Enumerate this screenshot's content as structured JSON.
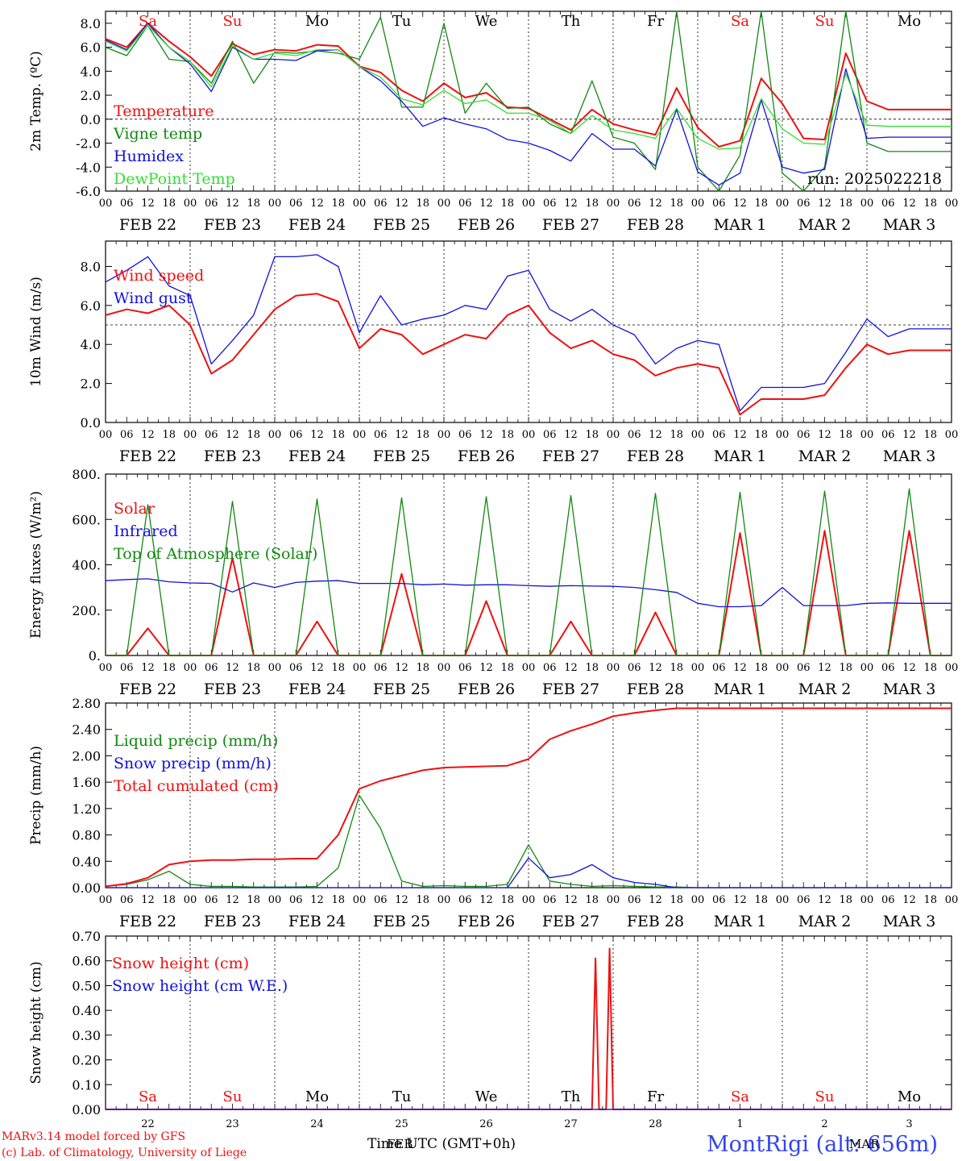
{
  "meta": {
    "run_label": "run: 2025022218",
    "station": "MontRigi (alt: 656m)",
    "credit_line1": "MARv3.14 model forced by GFS",
    "credit_line2": "(c) Lab. of Climatology, University of Liege",
    "xlabel": "Time UTC (GMT+0h)",
    "bottom_month_overlay": "FEB",
    "bottom_month_overlay2": "MAR"
  },
  "colors": {
    "red": "#ee1111",
    "green": "#118811",
    "blue": "#1111dd",
    "lightgreen": "#33dd33",
    "weekend": "#ee1111",
    "weekday": "#000000"
  },
  "days": [
    {
      "weekday": "Sa",
      "date": "FEB 22",
      "num": "22",
      "weekend": true
    },
    {
      "weekday": "Su",
      "date": "FEB 23",
      "num": "23",
      "weekend": true
    },
    {
      "weekday": "Mo",
      "date": "FEB 24",
      "num": "24",
      "weekend": false
    },
    {
      "weekday": "Tu",
      "date": "FEB 25",
      "num": "25",
      "weekend": false
    },
    {
      "weekday": "We",
      "date": "FEB 26",
      "num": "26",
      "weekend": false
    },
    {
      "weekday": "Th",
      "date": "FEB 27",
      "num": "27",
      "weekend": false
    },
    {
      "weekday": "Fr",
      "date": "FEB 28",
      "num": "28",
      "weekend": false
    },
    {
      "weekday": "Sa",
      "date": "MAR  1",
      "num": "1",
      "weekend": true
    },
    {
      "weekday": "Su",
      "date": "MAR  2",
      "num": "2",
      "weekend": true
    },
    {
      "weekday": "Mo",
      "date": "MAR  3",
      "num": "3",
      "weekend": false
    }
  ],
  "hour_ticks": [
    "00",
    "06",
    "12",
    "18"
  ],
  "chart_data": [
    {
      "type": "line",
      "ylabel": "2m Temp. (ºC)",
      "ylim": [
        -6,
        9
      ],
      "yticks": [
        "-6.0",
        "-4.0",
        "-2.0",
        "0.0",
        "2.0",
        "4.0",
        "6.0",
        "8.0"
      ],
      "ytick_values": [
        -6,
        -4,
        -2,
        0,
        2,
        4,
        6,
        8
      ],
      "ref_line": 0,
      "x_hours": [
        0,
        6,
        12,
        18,
        24,
        30,
        36,
        42,
        48,
        54,
        60,
        66,
        72,
        78,
        84,
        90,
        96,
        102,
        108,
        114,
        120,
        126,
        132,
        138,
        144,
        150,
        156,
        162,
        168,
        174,
        180,
        186,
        192,
        198,
        204,
        210,
        216,
        222,
        228,
        234,
        240
      ],
      "series": [
        {
          "name": "Temperature",
          "color": "red",
          "values": [
            6.7,
            6.0,
            8.0,
            6.5,
            5.2,
            3.6,
            6.3,
            5.4,
            5.8,
            5.7,
            6.2,
            6.1,
            4.4,
            3.9,
            2.4,
            1.5,
            3.0,
            1.8,
            2.2,
            1.0,
            0.9,
            0.0,
            -0.9,
            0.8,
            -0.4,
            -0.9,
            -1.3,
            2.6,
            -0.7,
            -2.3,
            -1.8,
            3.4,
            1.3,
            -1.6,
            -1.7,
            5.5,
            1.5,
            0.8,
            0.8,
            0.8,
            0.8
          ]
        },
        {
          "name": "Vigne temp",
          "color": "green",
          "values": [
            6.0,
            5.3,
            7.8,
            5.0,
            4.8,
            3.0,
            6.5,
            3.0,
            5.6,
            5.5,
            5.7,
            5.5,
            5.0,
            8.5,
            1.0,
            1.0,
            8.0,
            0.5,
            3.0,
            0.9,
            1.0,
            -0.4,
            -1.2,
            3.2,
            -1.5,
            -2.0,
            -4.2,
            9.0,
            -4.0,
            -6.5,
            -3.0,
            9.0,
            -4.5,
            -6.5,
            -4.0,
            9.0,
            -2.0,
            -2.7,
            -2.7,
            -2.7,
            -2.7
          ]
        },
        {
          "name": "Humidex",
          "color": "blue",
          "values": [
            6.6,
            5.8,
            8.0,
            6.0,
            4.6,
            2.3,
            6.0,
            5.0,
            5.0,
            4.9,
            5.7,
            5.8,
            4.4,
            3.2,
            1.5,
            -0.6,
            0.1,
            -0.4,
            -0.8,
            -1.7,
            -2.0,
            -2.6,
            -3.5,
            -1.2,
            -2.5,
            -2.5,
            -3.9,
            0.8,
            -4.4,
            -5.5,
            -4.5,
            1.6,
            -4.0,
            -4.5,
            -4.2,
            4.2,
            -1.6,
            -1.5,
            -1.5,
            -1.5,
            -1.5
          ]
        },
        {
          "name": "DewPoint Temp",
          "color": "lightgreen",
          "values": [
            6.5,
            5.7,
            7.8,
            6.0,
            4.8,
            2.7,
            6.1,
            5.0,
            5.5,
            5.3,
            5.8,
            5.8,
            4.4,
            3.5,
            1.7,
            1.2,
            2.4,
            1.3,
            1.6,
            0.5,
            0.5,
            -0.1,
            -1.2,
            0.3,
            -0.9,
            -1.2,
            -1.6,
            0.9,
            -1.6,
            -2.5,
            -2.4,
            1.7,
            -0.8,
            -2.0,
            -2.1,
            3.8,
            -0.5,
            -0.6,
            -0.6,
            -0.6,
            -0.6
          ]
        }
      ]
    },
    {
      "type": "line",
      "ylabel": "10m Wind (m/s)",
      "ylim": [
        0,
        9.3
      ],
      "yticks": [
        "0.0",
        "2.0",
        "4.0",
        "6.0",
        "8.0"
      ],
      "ytick_values": [
        0,
        2,
        4,
        6,
        8
      ],
      "ref_line": 5,
      "x_hours": [
        0,
        6,
        12,
        18,
        24,
        30,
        36,
        42,
        48,
        54,
        60,
        66,
        72,
        78,
        84,
        90,
        96,
        102,
        108,
        114,
        120,
        126,
        132,
        138,
        144,
        150,
        156,
        162,
        168,
        174,
        180,
        186,
        192,
        198,
        204,
        210,
        216,
        222,
        228,
        234,
        240
      ],
      "series": [
        {
          "name": "Wind speed",
          "color": "red",
          "values": [
            5.5,
            5.8,
            5.6,
            6.0,
            5.0,
            2.5,
            3.2,
            4.5,
            5.8,
            6.5,
            6.6,
            6.2,
            3.8,
            4.8,
            4.5,
            3.5,
            4.0,
            4.5,
            4.3,
            5.5,
            6.0,
            4.6,
            3.8,
            4.2,
            3.5,
            3.2,
            2.4,
            2.8,
            3.0,
            2.8,
            0.4,
            1.2,
            1.2,
            1.2,
            1.4,
            2.8,
            4.0,
            3.5,
            3.7,
            3.7,
            3.7
          ]
        },
        {
          "name": "Wind gust",
          "color": "blue",
          "values": [
            7.2,
            7.8,
            8.5,
            7.0,
            6.5,
            3.0,
            4.2,
            5.5,
            8.5,
            8.5,
            8.6,
            8.0,
            4.6,
            6.5,
            5.0,
            5.3,
            5.5,
            6.0,
            5.8,
            7.5,
            7.8,
            5.8,
            5.2,
            5.8,
            5.0,
            4.5,
            3.0,
            3.8,
            4.2,
            4.0,
            0.6,
            1.8,
            1.8,
            1.8,
            2.0,
            3.6,
            5.3,
            4.4,
            4.8,
            4.8,
            4.8
          ]
        }
      ]
    },
    {
      "type": "area",
      "ylabel": "Energy fluxes (W/m²)",
      "ylim": [
        0,
        800
      ],
      "yticks": [
        "0.",
        "200.",
        "400.",
        "600.",
        "800."
      ],
      "ytick_values": [
        0,
        200,
        400,
        600,
        800
      ],
      "x_hours": [
        0,
        6,
        12,
        18,
        24,
        30,
        36,
        42,
        48,
        54,
        60,
        66,
        72,
        78,
        84,
        90,
        96,
        102,
        108,
        114,
        120,
        126,
        132,
        138,
        144,
        150,
        156,
        162,
        168,
        174,
        180,
        186,
        192,
        198,
        204,
        210,
        216,
        222,
        228,
        234,
        240
      ],
      "series": [
        {
          "name": "Solar",
          "color": "red",
          "values": [
            0,
            0,
            120,
            0,
            0,
            0,
            430,
            0,
            0,
            0,
            150,
            0,
            0,
            0,
            360,
            0,
            0,
            0,
            240,
            0,
            0,
            0,
            150,
            0,
            0,
            0,
            190,
            0,
            0,
            0,
            540,
            0,
            0,
            0,
            550,
            0,
            0,
            0,
            550,
            0,
            0
          ]
        },
        {
          "name": "Infrared",
          "color": "blue",
          "values": [
            330,
            335,
            338,
            325,
            320,
            318,
            280,
            320,
            300,
            322,
            328,
            330,
            318,
            318,
            318,
            312,
            315,
            310,
            312,
            312,
            308,
            305,
            308,
            306,
            305,
            300,
            290,
            278,
            230,
            215,
            215,
            220,
            300,
            220,
            220,
            220,
            230,
            232,
            230,
            230,
            230
          ]
        },
        {
          "name": "Top of Atmosphere (Solar)",
          "color": "green",
          "values": [
            0,
            0,
            665,
            0,
            0,
            0,
            680,
            0,
            0,
            0,
            690,
            0,
            0,
            0,
            695,
            0,
            0,
            0,
            700,
            0,
            0,
            0,
            705,
            0,
            0,
            0,
            715,
            0,
            0,
            0,
            720,
            0,
            0,
            0,
            725,
            0,
            0,
            0,
            735,
            0,
            0
          ]
        }
      ]
    },
    {
      "type": "line",
      "ylabel": "Precip (mm/h)",
      "ylim": [
        0,
        2.8
      ],
      "yticks": [
        "0.00",
        "0.40",
        "0.80",
        "1.20",
        "1.60",
        "2.00",
        "2.40",
        "2.80"
      ],
      "ytick_values": [
        0,
        0.4,
        0.8,
        1.2,
        1.6,
        2.0,
        2.4,
        2.8
      ],
      "x_hours": [
        0,
        6,
        12,
        18,
        24,
        30,
        36,
        42,
        48,
        54,
        60,
        66,
        72,
        78,
        84,
        90,
        96,
        102,
        108,
        114,
        120,
        126,
        132,
        138,
        144,
        150,
        156,
        162,
        168,
        174,
        180,
        186,
        192,
        198,
        204,
        210,
        216,
        222,
        228,
        234,
        240
      ],
      "series": [
        {
          "name": "Liquid precip (mm/h)",
          "color": "green",
          "values": [
            0.02,
            0.05,
            0.12,
            0.25,
            0.05,
            0.02,
            0.02,
            0.01,
            0.01,
            0.01,
            0.02,
            0.3,
            1.4,
            0.9,
            0.1,
            0.02,
            0.03,
            0.02,
            0.02,
            0.05,
            0.65,
            0.1,
            0.05,
            0.02,
            0.03,
            0.02,
            0.01,
            0.01,
            0.0,
            0.0,
            0.0,
            0.0,
            0.0,
            0.0,
            0.0,
            0.0,
            0.0,
            0.0,
            0.0,
            0.0,
            0.0
          ]
        },
        {
          "name": "Snow precip (mm/h)",
          "color": "blue",
          "values": [
            0,
            0,
            0,
            0,
            0,
            0,
            0,
            0,
            0,
            0,
            0,
            0,
            0,
            0,
            0,
            0,
            0,
            0,
            0,
            0,
            0.45,
            0.15,
            0.2,
            0.35,
            0.15,
            0.08,
            0.05,
            0,
            0,
            0,
            0,
            0,
            0,
            0,
            0,
            0,
            0,
            0,
            0,
            0,
            0
          ]
        },
        {
          "name": "Total cumulated (cm)",
          "color": "red",
          "values": [
            0.02,
            0.06,
            0.15,
            0.35,
            0.4,
            0.42,
            0.42,
            0.43,
            0.43,
            0.44,
            0.44,
            0.8,
            1.5,
            1.62,
            1.7,
            1.78,
            1.82,
            1.83,
            1.84,
            1.85,
            1.95,
            2.25,
            2.38,
            2.48,
            2.6,
            2.65,
            2.69,
            2.72,
            2.72,
            2.72,
            2.72,
            2.72,
            2.72,
            2.72,
            2.72,
            2.72,
            2.72,
            2.72,
            2.72,
            2.72,
            2.72
          ]
        }
      ]
    },
    {
      "type": "line",
      "ylabel": "Snow height (cm)",
      "ylim": [
        0,
        0.7
      ],
      "yticks": [
        "0.00",
        "0.10",
        "0.20",
        "0.30",
        "0.40",
        "0.50",
        "0.60",
        "0.70"
      ],
      "ytick_values": [
        0,
        0.1,
        0.2,
        0.3,
        0.4,
        0.5,
        0.6,
        0.7
      ],
      "x_hours": [
        0,
        138,
        139,
        140,
        141,
        142,
        143,
        144,
        145,
        146,
        240
      ],
      "series": [
        {
          "name": "Snow height (cm)",
          "color": "red",
          "values": [
            0,
            0,
            0.61,
            0,
            0,
            0,
            0.65,
            0,
            0,
            0,
            0
          ]
        },
        {
          "name": "Snow height (cm W.E.)",
          "color": "blue",
          "values": [
            0,
            0,
            0,
            0,
            0,
            0,
            0,
            0,
            0,
            0,
            0
          ]
        }
      ]
    }
  ]
}
